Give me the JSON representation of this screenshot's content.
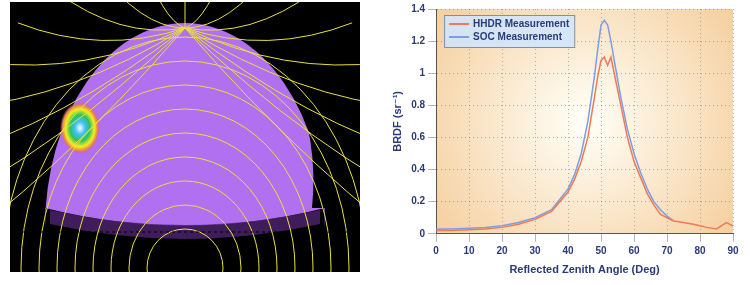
{
  "chart_data": {
    "type": "line",
    "x_label": "Reflected Zenith Angle (Deg)",
    "y_label": "BRDF (sr⁻¹)",
    "x": [
      0,
      5,
      10,
      15,
      20,
      25,
      30,
      35,
      40,
      42,
      44,
      46,
      48,
      49,
      50,
      51,
      52,
      53,
      54,
      56,
      58,
      60,
      62,
      64,
      66,
      68,
      70,
      72,
      75,
      78,
      80,
      82,
      85,
      88,
      90
    ],
    "series": [
      {
        "name": "HHDR Measurement",
        "color": "#f07a55",
        "values": [
          0.02,
          0.02,
          0.025,
          0.03,
          0.04,
          0.06,
          0.09,
          0.14,
          0.26,
          0.34,
          0.45,
          0.6,
          0.85,
          0.98,
          1.08,
          1.1,
          1.05,
          1.1,
          1.0,
          0.8,
          0.6,
          0.45,
          0.35,
          0.25,
          0.18,
          0.12,
          0.1,
          0.08,
          0.07,
          0.06,
          0.05,
          0.04,
          0.03,
          0.07,
          0.05
        ]
      },
      {
        "name": "SOC Measurement",
        "color": "#7b9ee8",
        "values": [
          0.03,
          0.03,
          0.035,
          0.04,
          0.05,
          0.07,
          0.1,
          0.15,
          0.28,
          0.37,
          0.5,
          0.7,
          0.98,
          1.15,
          1.3,
          1.33,
          1.3,
          1.2,
          1.08,
          0.85,
          0.65,
          0.5,
          0.38,
          0.28,
          0.2,
          0.15,
          0.11,
          0.08,
          null,
          null,
          null,
          null,
          null,
          null,
          null
        ]
      }
    ],
    "xlim": [
      0,
      90
    ],
    "xticks": [
      0,
      10,
      20,
      30,
      40,
      50,
      60,
      70,
      80,
      90
    ],
    "ylim": [
      0,
      1.4
    ],
    "yticks": [
      0,
      0.2,
      0.4,
      0.6,
      0.8,
      1,
      1.2,
      1.4
    ],
    "grid": true,
    "legend": "upper left"
  }
}
